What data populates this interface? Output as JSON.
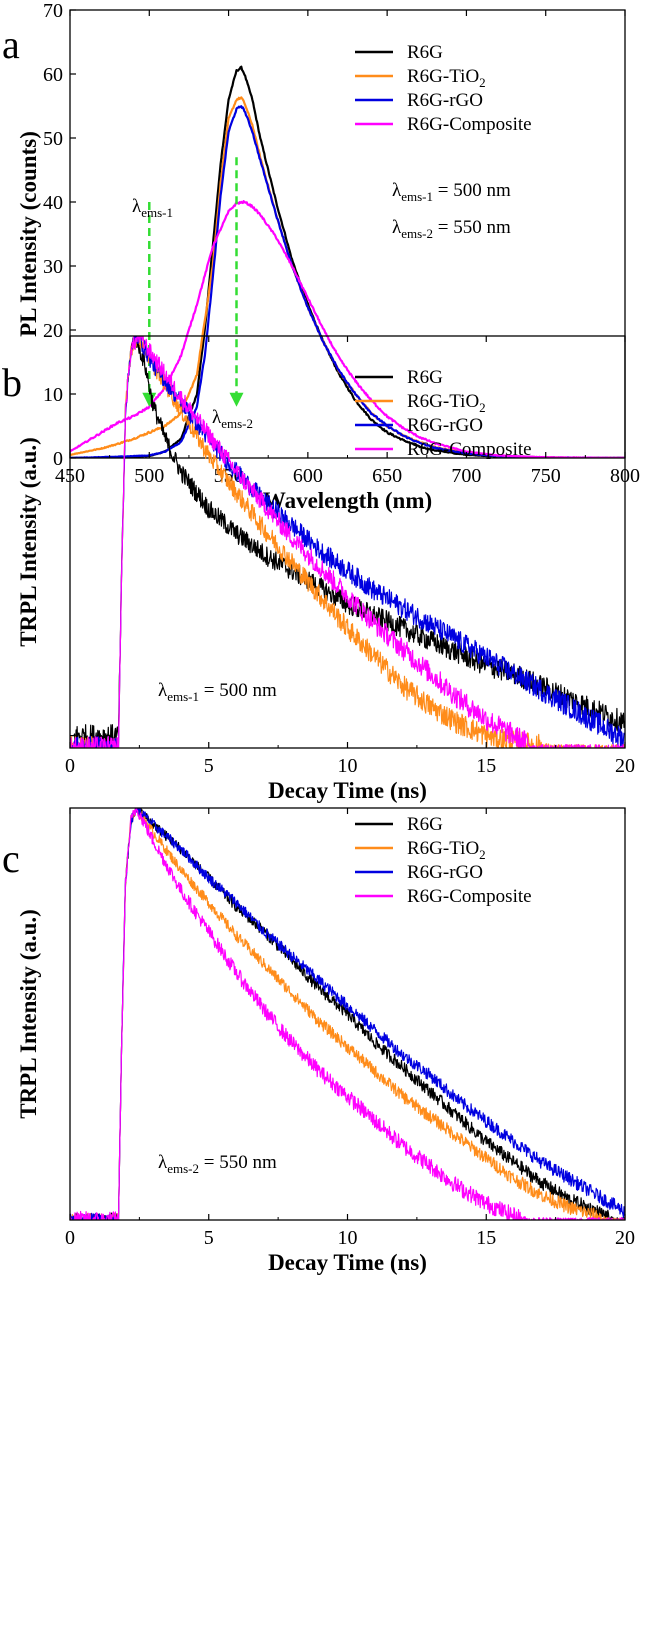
{
  "chart_data": [
    {
      "panel_label": "a",
      "type": "line",
      "xlabel": "Wavelength (nm)",
      "ylabel": "PL Intensity (counts)",
      "xlim": [
        450,
        800
      ],
      "ylim": [
        0,
        70
      ],
      "xticks": [
        450,
        500,
        550,
        600,
        650,
        700,
        750,
        800
      ],
      "yticks": [
        0,
        10,
        20,
        30,
        40,
        50,
        60,
        70
      ],
      "legend_position": "top-right",
      "series": [
        {
          "name": "R6G",
          "color": "#000000",
          "x": [
            450,
            480,
            500,
            510,
            520,
            530,
            535,
            540,
            545,
            550,
            555,
            558,
            560,
            565,
            570,
            580,
            590,
            600,
            610,
            620,
            630,
            640,
            650,
            660,
            670,
            680,
            700,
            720,
            750,
            800
          ],
          "y": [
            0,
            0.1,
            0.3,
            1,
            3,
            10,
            20,
            33,
            46,
            56,
            60.5,
            61,
            60,
            56,
            50,
            40,
            31,
            24,
            18,
            13,
            9,
            6,
            4,
            2.8,
            1.8,
            1.2,
            0.5,
            0.2,
            0.05,
            0
          ]
        },
        {
          "name": "R6G-TiO2",
          "name_main": "R6G-TiO",
          "name_sub": "2",
          "color": "#ff8c1a",
          "x": [
            450,
            470,
            480,
            490,
            500,
            510,
            520,
            530,
            540,
            545,
            550,
            555,
            558,
            560,
            565,
            570,
            580,
            590,
            600,
            610,
            620,
            630,
            640,
            650,
            660,
            670,
            680,
            700,
            720,
            750,
            800
          ],
          "y": [
            0.5,
            1.5,
            2.2,
            3,
            4,
            5,
            7,
            13,
            30,
            43,
            53,
            56,
            56.3,
            55.5,
            52,
            47,
            38,
            30,
            23.5,
            18,
            13.5,
            10,
            7,
            5,
            3.5,
            2.5,
            1.7,
            0.8,
            0.3,
            0.1,
            0
          ]
        },
        {
          "name": "R6G-rGO",
          "name_main": "R6G-rGO",
          "color": "#0000e0",
          "x": [
            450,
            480,
            500,
            510,
            520,
            530,
            535,
            540,
            545,
            550,
            555,
            558,
            560,
            565,
            570,
            580,
            590,
            600,
            610,
            620,
            630,
            640,
            650,
            660,
            670,
            680,
            700,
            720,
            750,
            800
          ],
          "y": [
            0,
            0.2,
            0.4,
            1,
            2.5,
            8,
            16,
            28,
            41,
            51,
            54.5,
            55,
            54.3,
            51,
            46.5,
            38,
            30,
            23.5,
            18,
            13.5,
            10,
            7,
            5,
            3.5,
            2.4,
            1.6,
            0.7,
            0.3,
            0.08,
            0
          ]
        },
        {
          "name": "R6G-Composite",
          "name_main": "R6G-Composite",
          "color": "#ff00ff",
          "x": [
            450,
            460,
            470,
            480,
            490,
            500,
            510,
            520,
            530,
            540,
            550,
            555,
            560,
            565,
            570,
            580,
            590,
            600,
            610,
            620,
            630,
            640,
            650,
            660,
            670,
            680,
            700,
            720,
            750,
            800
          ],
          "y": [
            1,
            2.5,
            4,
            5.5,
            6.5,
            8,
            11,
            16,
            24,
            33,
            38.5,
            39.8,
            40,
            39.3,
            38,
            34.5,
            30,
            25,
            20,
            15.5,
            12,
            9,
            6.5,
            4.7,
            3.3,
            2.3,
            1,
            0.4,
            0.1,
            0
          ]
        }
      ],
      "annotations": [
        {
          "main": "λ",
          "sub": "ems-1",
          "anchor_x": 500,
          "anchor_y": 38
        },
        {
          "main": "λ",
          "sub": "ems-2",
          "anchor_x": 550,
          "anchor_y": 5
        },
        {
          "main": "λ",
          "sub": "ems-1",
          "suffix": " = 500 nm"
        },
        {
          "main": "λ",
          "sub": "ems-2",
          "suffix": " = 550 nm"
        }
      ],
      "arrows": [
        {
          "x": 500,
          "y_from": 40,
          "y_to": 8,
          "color": "#33dd33",
          "style": "dashed"
        },
        {
          "x": 555,
          "y_from": 47,
          "y_to": 8,
          "color": "#33dd33",
          "style": "dashed"
        }
      ]
    },
    {
      "panel_label": "b",
      "type": "line",
      "xlabel": "Decay Time (ns)",
      "ylabel": "TRPL Intensity (a.u.)",
      "xlim": [
        0,
        20
      ],
      "ylim_normalized": [
        0,
        1
      ],
      "xticks": [
        0,
        5,
        10,
        15,
        20
      ],
      "legend_position": "top-right",
      "annotation": {
        "main": "λ",
        "sub": "ems-1",
        "suffix": " = 500 nm"
      },
      "series": [
        {
          "name": "R6G",
          "color": "#000000",
          "noise": 0.02,
          "x": [
            0,
            1.75,
            1.85,
            2.0,
            2.2,
            2.35,
            2.7,
            3.0,
            3.5,
            4,
            5,
            6,
            7,
            8,
            9,
            10,
            11,
            12,
            13,
            14,
            15,
            16,
            17,
            18,
            19,
            20
          ],
          "y": [
            0.03,
            0.03,
            0.4,
            0.82,
            0.97,
            1.0,
            0.93,
            0.83,
            0.74,
            0.67,
            0.58,
            0.52,
            0.47,
            0.43,
            0.39,
            0.35,
            0.32,
            0.29,
            0.26,
            0.23,
            0.2,
            0.18,
            0.15,
            0.12,
            0.09,
            0.06
          ]
        },
        {
          "name": "R6G-TiO2",
          "name_main": "R6G-TiO",
          "name_sub": "2",
          "color": "#ff8c1a",
          "noise": 0.02,
          "x": [
            1.75,
            1.85,
            2.0,
            2.2,
            2.45,
            3,
            4,
            5,
            6,
            7,
            8,
            9,
            10,
            11,
            12,
            13,
            14,
            15,
            16,
            17,
            17.4
          ],
          "y": [
            0,
            0.4,
            0.82,
            0.97,
            1.0,
            0.93,
            0.82,
            0.71,
            0.62,
            0.53,
            0.45,
            0.37,
            0.29,
            0.22,
            0.15,
            0.1,
            0.06,
            0.03,
            0.015,
            0.005,
            0
          ]
        },
        {
          "name": "R6G-rGO",
          "name_main": "R6G-rGO",
          "color": "#0000e0",
          "noise": 0.02,
          "x": [
            1.75,
            1.85,
            2.0,
            2.2,
            2.45,
            3,
            4,
            5,
            6,
            7,
            8,
            9,
            10,
            11,
            12,
            13,
            14,
            15,
            16,
            17,
            18,
            19,
            20
          ],
          "y": [
            0,
            0.4,
            0.82,
            0.97,
            1.0,
            0.93,
            0.84,
            0.75,
            0.67,
            0.6,
            0.54,
            0.48,
            0.43,
            0.38,
            0.34,
            0.3,
            0.26,
            0.22,
            0.18,
            0.14,
            0.1,
            0.06,
            0.02
          ]
        },
        {
          "name": "R6G-Composite",
          "name_main": "R6G-Composite",
          "color": "#ff00ff",
          "noise": 0.02,
          "x": [
            1.75,
            1.85,
            2.0,
            2.2,
            2.5,
            3,
            4,
            5,
            6,
            7,
            8,
            9,
            10,
            11,
            12,
            13,
            14,
            15,
            16,
            16.8
          ],
          "y": [
            0,
            0.4,
            0.82,
            0.97,
            1.0,
            0.95,
            0.85,
            0.76,
            0.67,
            0.59,
            0.51,
            0.44,
            0.37,
            0.3,
            0.24,
            0.18,
            0.12,
            0.07,
            0.03,
            0
          ]
        }
      ]
    },
    {
      "panel_label": "c",
      "type": "line",
      "xlabel": "Decay Time (ns)",
      "ylabel": "TRPL Intensity (a.u.)",
      "xlim": [
        0,
        20
      ],
      "ylim_normalized": [
        0,
        1
      ],
      "xticks": [
        0,
        5,
        10,
        15,
        20
      ],
      "legend_position": "top-right",
      "annotation": {
        "main": "λ",
        "sub": "ems-2",
        "suffix": " = 550 nm"
      },
      "series": [
        {
          "name": "R6G",
          "color": "#000000",
          "noise": 0.012,
          "x": [
            1.75,
            1.85,
            2.0,
            2.2,
            2.4,
            3,
            4,
            5,
            6,
            7,
            8,
            9,
            10,
            11,
            12,
            13,
            14,
            15,
            16,
            17,
            18,
            19,
            19.6
          ],
          "y": [
            0,
            0.4,
            0.82,
            0.97,
            1.0,
            0.96,
            0.9,
            0.83,
            0.76,
            0.7,
            0.63,
            0.56,
            0.5,
            0.43,
            0.37,
            0.31,
            0.25,
            0.19,
            0.14,
            0.09,
            0.05,
            0.02,
            0
          ]
        },
        {
          "name": "R6G-TiO2",
          "name_main": "R6G-TiO",
          "name_sub": "2",
          "color": "#ff8c1a",
          "noise": 0.012,
          "x": [
            1.75,
            1.85,
            2.0,
            2.2,
            2.4,
            3,
            4,
            5,
            6,
            7,
            8,
            9,
            10,
            11,
            12,
            13,
            14,
            15,
            16,
            17,
            18,
            19,
            19.4
          ],
          "y": [
            0,
            0.4,
            0.82,
            0.97,
            1.0,
            0.94,
            0.85,
            0.77,
            0.69,
            0.62,
            0.55,
            0.48,
            0.42,
            0.36,
            0.3,
            0.25,
            0.2,
            0.15,
            0.1,
            0.06,
            0.03,
            0.01,
            0
          ]
        },
        {
          "name": "R6G-rGO",
          "name_main": "R6G-rGO",
          "color": "#0000e0",
          "noise": 0.012,
          "x": [
            1.75,
            1.85,
            2.0,
            2.2,
            2.4,
            3,
            4,
            5,
            6,
            7,
            8,
            9,
            10,
            11,
            12,
            13,
            14,
            15,
            16,
            17,
            18,
            19,
            20
          ],
          "y": [
            0,
            0.4,
            0.82,
            0.97,
            1.0,
            0.96,
            0.9,
            0.83,
            0.77,
            0.7,
            0.64,
            0.58,
            0.52,
            0.46,
            0.4,
            0.35,
            0.29,
            0.24,
            0.19,
            0.14,
            0.1,
            0.06,
            0.02
          ]
        },
        {
          "name": "R6G-Composite",
          "name_main": "R6G-Composite",
          "color": "#ff00ff",
          "noise": 0.015,
          "x": [
            1.75,
            1.85,
            2.0,
            2.2,
            2.4,
            3,
            4,
            5,
            6,
            7,
            8,
            9,
            10,
            11,
            12,
            13,
            14,
            15,
            16,
            16.5
          ],
          "y": [
            0,
            0.4,
            0.82,
            0.97,
            1.0,
            0.92,
            0.8,
            0.7,
            0.6,
            0.51,
            0.43,
            0.36,
            0.3,
            0.24,
            0.18,
            0.13,
            0.08,
            0.04,
            0.01,
            0
          ]
        }
      ]
    }
  ]
}
